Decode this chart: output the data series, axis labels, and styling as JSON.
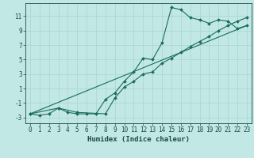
{
  "xlabel": "Humidex (Indice chaleur)",
  "bg_color": "#c2e8e5",
  "grid_color": "#a8d4d0",
  "line_color": "#1a6b5a",
  "xlim": [
    -0.5,
    23.5
  ],
  "ylim": [
    -3.8,
    12.8
  ],
  "xticks": [
    0,
    1,
    2,
    3,
    4,
    5,
    6,
    7,
    8,
    9,
    10,
    11,
    12,
    13,
    14,
    15,
    16,
    17,
    18,
    19,
    20,
    21,
    22,
    23
  ],
  "yticks": [
    -3,
    -1,
    1,
    3,
    5,
    7,
    9,
    11
  ],
  "curve1_x": [
    0,
    1,
    2,
    3,
    4,
    5,
    6,
    7,
    8,
    9,
    10,
    11,
    12,
    13,
    14,
    15,
    16,
    17,
    18,
    19,
    20,
    21,
    22,
    23
  ],
  "curve1_y": [
    -2.5,
    -2.7,
    -2.5,
    -1.7,
    -2.3,
    -2.5,
    -2.5,
    -2.5,
    -0.5,
    0.4,
    2.0,
    3.3,
    5.2,
    5.0,
    7.3,
    12.2,
    11.9,
    10.8,
    10.5,
    10.0,
    10.5,
    10.3,
    9.3,
    9.7
  ],
  "curve2_x": [
    0,
    3,
    5,
    8,
    9,
    10,
    11,
    12,
    13,
    14,
    15,
    16,
    17,
    18,
    19,
    20,
    21,
    22,
    23
  ],
  "curve2_y": [
    -2.5,
    -1.7,
    -2.3,
    -2.5,
    -0.3,
    1.2,
    2.0,
    3.0,
    3.3,
    4.5,
    5.2,
    6.0,
    6.8,
    7.5,
    8.2,
    9.0,
    9.7,
    10.3,
    10.8
  ],
  "curve3_x": [
    0,
    23
  ],
  "curve3_y": [
    -2.5,
    9.7
  ],
  "font_color": "#1a4a44",
  "tick_fontsize": 5.5,
  "label_fontsize": 6.5
}
